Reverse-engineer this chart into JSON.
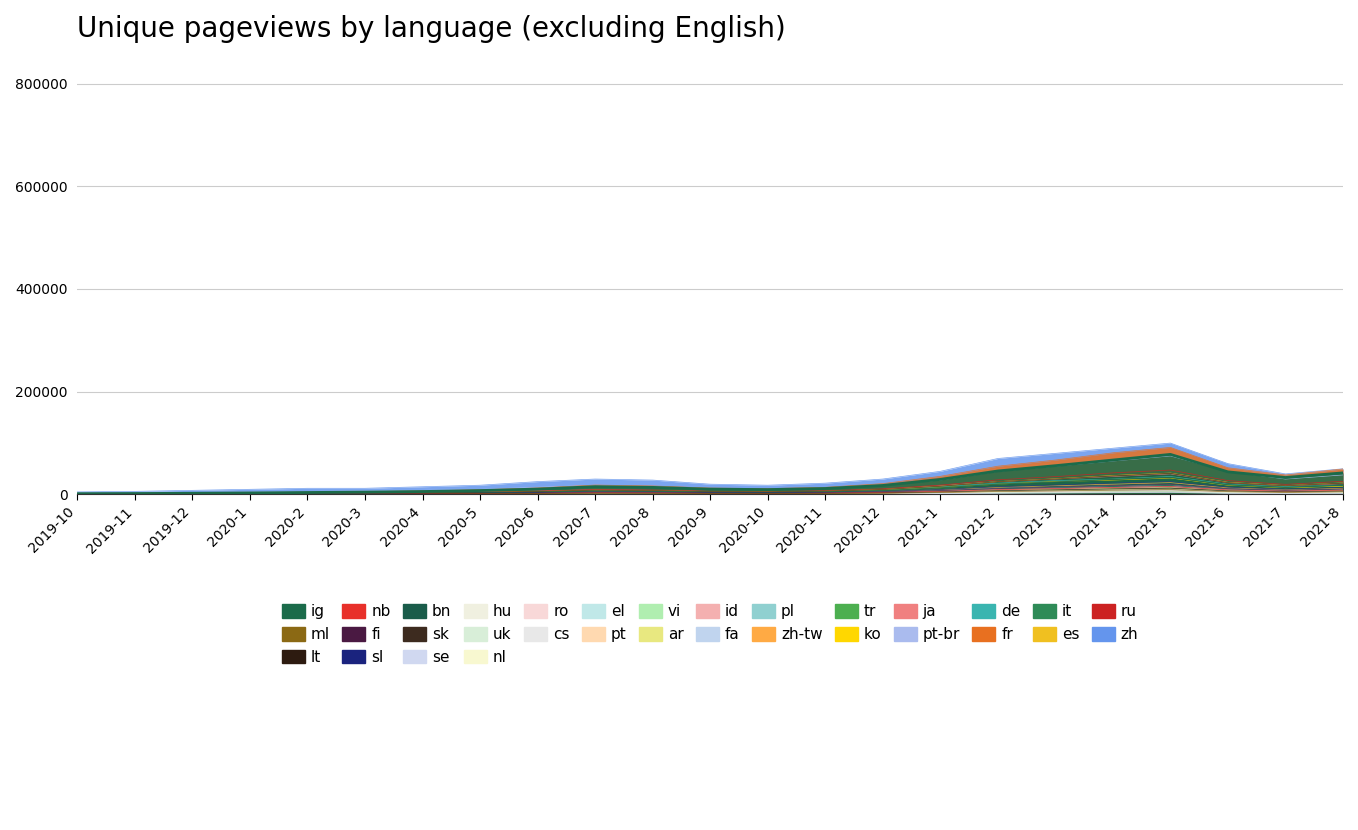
{
  "title": "Unique pageviews by language (excluding English)",
  "x_labels": [
    "2019-10",
    "2019-11",
    "2019-12",
    "2020-1",
    "2020-2",
    "2020-3",
    "2020-4",
    "2020-5",
    "2020-6",
    "2020-7",
    "2020-8",
    "2020-9",
    "2020-10",
    "2020-11",
    "2020-12",
    "2021-1",
    "2021-2",
    "2021-3",
    "2021-4",
    "2021-5",
    "2021-6",
    "2021-7",
    "2021-8"
  ],
  "ylim": [
    0,
    850000
  ],
  "yticks": [
    0,
    200000,
    400000,
    600000,
    800000
  ],
  "color_map": {
    "ig": "#1b6b4a",
    "ml": "#8b6914",
    "lt": "#2d1b10",
    "nb": "#e8302a",
    "fi": "#4a1942",
    "sl": "#1a237e",
    "bn": "#1a5c4a",
    "sk": "#3d2b1f",
    "se": "#d0d8f0",
    "hu": "#f0f0e0",
    "uk": "#d8eed8",
    "nl": "#f8f8d0",
    "ro": "#f8d8d8",
    "cs": "#e8e8e8",
    "el": "#c0e8e8",
    "pt": "#ffd9b0",
    "vi": "#b0eeb0",
    "ar": "#e8e880",
    "id": "#f4b0b0",
    "fa": "#c0d4ee",
    "pl": "#90d0d0",
    "zh-tw": "#ffaa44",
    "tr": "#4caf50",
    "ko": "#ffd700",
    "ja": "#f08080",
    "pt-br": "#aabbee",
    "de": "#3ab5b0",
    "ru": "#cc2222",
    "es": "#f0c020",
    "it": "#2e8b57",
    "fr": "#e87020",
    "zh": "#6495ED"
  },
  "series": {
    "zh": [
      5000,
      6000,
      8000,
      10000,
      12000,
      12000,
      15000,
      18000,
      25000,
      30000,
      28000,
      20000,
      18000,
      22000,
      30000,
      45000,
      70000,
      80000,
      90000,
      100000,
      60000,
      40000,
      50000
    ],
    "pt-br": [
      3000,
      3500,
      4000,
      5000,
      6000,
      7000,
      8000,
      10000,
      14000,
      18000,
      16000,
      12000,
      10000,
      12000,
      18000,
      28000,
      45000,
      55000,
      65000,
      75000,
      45000,
      30000,
      38000
    ],
    "de": [
      1000,
      1200,
      1500,
      2000,
      2500,
      3000,
      3500,
      4500,
      6000,
      8000,
      7500,
      5500,
      5000,
      6000,
      9000,
      15000,
      22000,
      27000,
      30000,
      35000,
      20000,
      15000,
      18000
    ],
    "ja": [
      1500,
      1800,
      2000,
      2500,
      3000,
      3500,
      4000,
      5000,
      7000,
      9000,
      8000,
      6000,
      5500,
      6500,
      10000,
      17000,
      25000,
      30000,
      35000,
      40000,
      23000,
      17000,
      21000
    ],
    "ko": [
      800,
      1000,
      1200,
      1500,
      2000,
      2500,
      3000,
      4000,
      5500,
      7000,
      6500,
      5000,
      4500,
      5500,
      8000,
      13000,
      20000,
      25000,
      28000,
      32000,
      18000,
      13000,
      16000
    ],
    "tr": [
      600,
      700,
      900,
      1200,
      1500,
      1800,
      2200,
      3000,
      4000,
      5500,
      5000,
      3800,
      3500,
      4200,
      6000,
      10000,
      15000,
      18000,
      22000,
      25000,
      14000,
      10000,
      13000
    ],
    "zh-tw": [
      500,
      600,
      800,
      1000,
      1300,
      1600,
      2000,
      2600,
      3500,
      5000,
      4500,
      3400,
      3000,
      3700,
      5500,
      9000,
      14000,
      17000,
      20000,
      23000,
      13000,
      9500,
      12000
    ],
    "pl": [
      400,
      500,
      600,
      800,
      1000,
      1200,
      1500,
      2000,
      2800,
      4000,
      3600,
      2700,
      2500,
      3000,
      4500,
      7500,
      12000,
      14000,
      17000,
      19000,
      11000,
      8000,
      10000
    ],
    "fa": [
      300,
      380,
      460,
      600,
      780,
      950,
      1200,
      1600,
      2200,
      3200,
      2900,
      2200,
      2000,
      2400,
      3600,
      6000,
      9500,
      11500,
      14000,
      16000,
      9000,
      6500,
      8500
    ],
    "id": [
      280,
      350,
      420,
      550,
      700,
      850,
      1100,
      1450,
      2000,
      2900,
      2600,
      2000,
      1800,
      2200,
      3300,
      5500,
      8500,
      10500,
      12500,
      14500,
      8200,
      6000,
      7800
    ],
    "ar": [
      250,
      320,
      380,
      500,
      640,
      780,
      980,
      1300,
      1800,
      2600,
      2400,
      1800,
      1650,
      2000,
      3000,
      5000,
      7800,
      9500,
      11500,
      13000,
      7400,
      5400,
      7000
    ],
    "vi": [
      220,
      280,
      340,
      440,
      560,
      680,
      860,
      1140,
      1580,
      2280,
      2060,
      1560,
      1440,
      1740,
      2640,
      4400,
      6860,
      8340,
      10140,
      11440,
      6480,
      4740,
      6180
    ],
    "pt": [
      200,
      250,
      300,
      400,
      500,
      620,
      780,
      1040,
      1440,
      2080,
      1880,
      1420,
      1300,
      1580,
      2400,
      4000,
      6240,
      7600,
      9200,
      10400,
      5900,
      4300,
      5620
    ],
    "el": [
      180,
      225,
      270,
      360,
      455,
      560,
      700,
      935,
      1295,
      1875,
      1695,
      1280,
      1170,
      1420,
      2160,
      3600,
      5620,
      6840,
      8280,
      9360,
      5310,
      3870,
      5055
    ],
    "cs": [
      160,
      200,
      240,
      320,
      405,
      500,
      630,
      840,
      1165,
      1685,
      1525,
      1150,
      1050,
      1280,
      1940,
      3240,
      5060,
      6155,
      7450,
      8415,
      4780,
      3485,
      4550
    ],
    "ro": [
      140,
      178,
      215,
      285,
      360,
      445,
      560,
      750,
      1040,
      1505,
      1360,
      1025,
      940,
      1140,
      1730,
      2890,
      4510,
      5490,
      6640,
      7505,
      4255,
      3105,
      4055
    ],
    "nl": [
      120,
      152,
      184,
      245,
      310,
      380,
      480,
      640,
      885,
      1280,
      1160,
      875,
      800,
      970,
      1475,
      2460,
      3840,
      4675,
      5650,
      6385,
      3625,
      2645,
      3455
    ],
    "uk": [
      100,
      127,
      153,
      205,
      260,
      320,
      400,
      535,
      740,
      1070,
      968,
      730,
      668,
      810,
      1232,
      2056,
      3212,
      3910,
      4730,
      5346,
      3034,
      2213,
      2890
    ],
    "hu": [
      85,
      108,
      130,
      174,
      220,
      272,
      340,
      455,
      630,
      910,
      823,
      620,
      568,
      690,
      1047,
      1748,
      2730,
      3325,
      4021,
      4544,
      2579,
      1881,
      2458
    ],
    "se": [
      70,
      89,
      107,
      143,
      182,
      225,
      282,
      376,
      522,
      754,
      682,
      514,
      471,
      572,
      868,
      1448,
      2262,
      2753,
      3330,
      3763,
      2136,
      1558,
      2036
    ],
    "sk": [
      800,
      1000,
      1200,
      1600,
      2000,
      2500,
      3200,
      4200,
      5800,
      8400,
      7600,
      5700,
      5200,
      6400,
      9600,
      16000,
      25000,
      30000,
      36000,
      41000,
      23000,
      17000,
      22000
    ],
    "bn": [
      600,
      750,
      950,
      1260,
      1600,
      1970,
      2460,
      3280,
      4540,
      6580,
      5960,
      4480,
      4110,
      5000,
      7580,
      12650,
      19760,
      24050,
      29120,
      32900,
      18680,
      13620,
      17780
    ],
    "sl": [
      450,
      570,
      715,
      955,
      1210,
      1495,
      1875,
      2500,
      3465,
      5015,
      4545,
      3415,
      3135,
      3815,
      5790,
      9660,
      15090,
      18370,
      22220,
      25110,
      14260,
      10400,
      13580
    ],
    "fi": [
      350,
      443,
      556,
      743,
      940,
      1162,
      1455,
      1943,
      2689,
      3893,
      3527,
      2654,
      2435,
      2963,
      4495,
      7500,
      11710,
      14260,
      17250,
      19500,
      11070,
      8075,
      10545
    ],
    "nb": [
      280,
      355,
      446,
      595,
      753,
      930,
      1166,
      1557,
      2154,
      3117,
      2824,
      2124,
      1949,
      2371,
      3598,
      6004,
      9373,
      11414,
      13812,
      15614,
      8863,
      6462,
      8440
    ],
    "lt": [
      220,
      278,
      349,
      467,
      590,
      730,
      915,
      1221,
      1690,
      2447,
      2217,
      1668,
      1531,
      1862,
      2826,
      4715,
      7360,
      8962,
      10843,
      12251,
      6955,
      5073,
      6625
    ],
    "ml": [
      170,
      215,
      270,
      360,
      455,
      562,
      705,
      940,
      1302,
      1884,
      1707,
      1285,
      1179,
      1434,
      2175,
      3631,
      5667,
      6902,
      8352,
      9440,
      5360,
      3909,
      5105
    ],
    "ig": [
      1500,
      1800,
      2300,
      3000,
      3800,
      4600,
      5700,
      7600,
      10500,
      15200,
      13800,
      10400,
      9500,
      11600,
      17500,
      29300,
      45700,
      56000,
      67000,
      78000,
      44000,
      33000,
      42000
    ],
    "ru": [
      900,
      1100,
      1400,
      1850,
      2350,
      2850,
      3600,
      4750,
      6600,
      9500,
      8600,
      6450,
      5950,
      7200,
      10950,
      18250,
      28500,
      34700,
      42000,
      47500,
      26950,
      19650,
      25700
    ],
    "es": [
      750,
      950,
      1190,
      1590,
      2010,
      2485,
      3115,
      4155,
      5750,
      8325,
      7540,
      5670,
      5205,
      6330,
      9605,
      16030,
      25030,
      30475,
      36885,
      41690,
      23655,
      17260,
      22535
    ],
    "it": [
      600,
      760,
      955,
      1275,
      1610,
      1990,
      2495,
      3330,
      4610,
      6675,
      6045,
      4548,
      4175,
      5075,
      7700,
      12850,
      20060,
      24435,
      29570,
      33420,
      18970,
      13835,
      18065
    ],
    "fr": [
      1750,
      2100,
      2650,
      3500,
      4450,
      5500,
      6850,
      9150,
      12650,
      18300,
      16600,
      12450,
      11450,
      13900,
      21100,
      35250,
      55000,
      66950,
      81050,
      91600,
      52000,
      37950,
      49550
    ]
  },
  "legend_row1": [
    "ig",
    "ml",
    "lt",
    "nb",
    "fi",
    "sl",
    "bn",
    "sk",
    "se",
    "hu",
    "uk",
    "nl",
    "ro",
    "cs"
  ],
  "legend_row2": [
    "el",
    "pt",
    "vi",
    "ar",
    "id",
    "fa",
    "pl",
    "zh-tw",
    "tr",
    "ko",
    "ja",
    "pt-br",
    "de"
  ],
  "legend_row3": [
    "fr",
    "it",
    "es",
    "ru",
    "zh"
  ],
  "background_color": "#ffffff",
  "title_fontsize": 20,
  "tick_fontsize": 10,
  "legend_fontsize": 11,
  "draw_order": [
    "zh",
    "pt-br",
    "de",
    "ja",
    "ko",
    "tr",
    "zh-tw",
    "pl",
    "fa",
    "id",
    "ar",
    "vi",
    "pt",
    "el",
    "cs",
    "ro",
    "nl",
    "uk",
    "hu",
    "se",
    "ru",
    "es",
    "it",
    "fr",
    "sk",
    "bn",
    "sl",
    "fi",
    "nb",
    "lt",
    "ml",
    "ig"
  ]
}
